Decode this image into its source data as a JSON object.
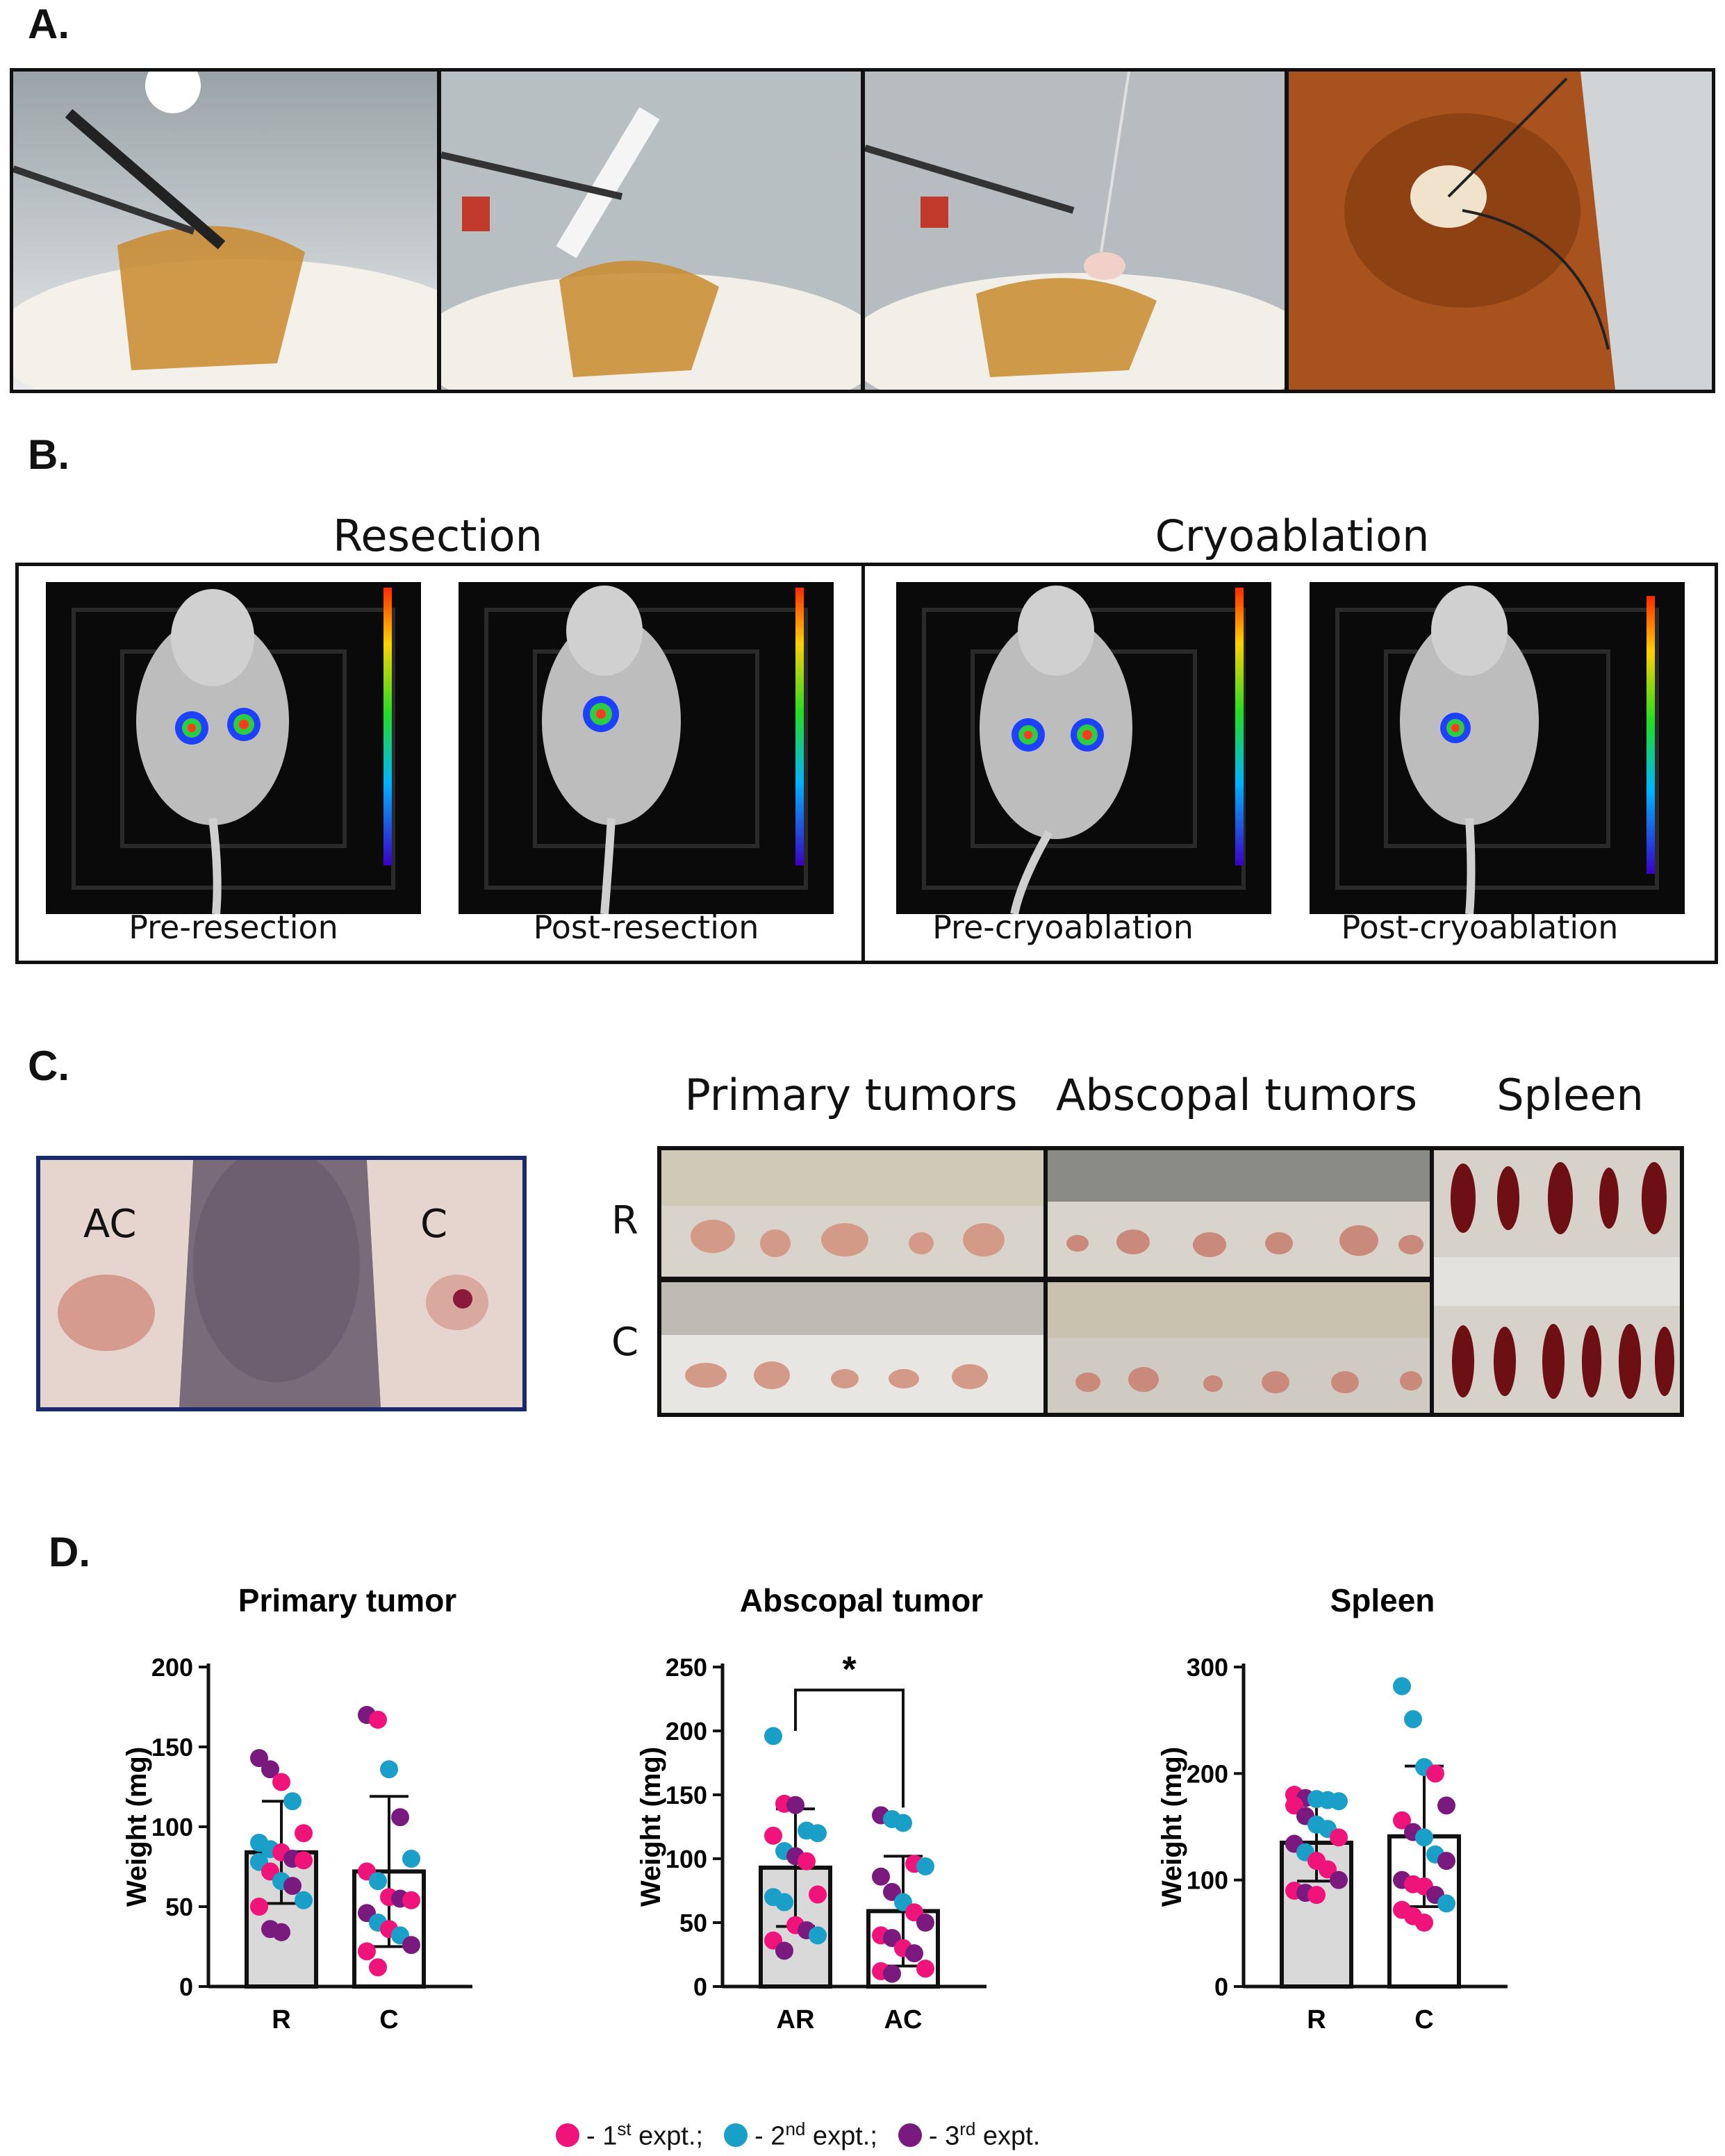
{
  "panels": {
    "a": "A.",
    "b": "B.",
    "c": "C.",
    "d": "D."
  },
  "panel_b": {
    "groups": [
      "Resection",
      "Cryoablation"
    ],
    "captions": [
      "Pre-resection",
      "Post-resection",
      "Pre-cryoablation",
      "Post-cryoablation"
    ]
  },
  "panel_c": {
    "mouse_labels": [
      "AC",
      "C"
    ],
    "headers": [
      "Primary tumors",
      "Abscopal tumors",
      "Spleen"
    ],
    "rows": [
      "R",
      "C"
    ]
  },
  "colors": {
    "first": "#f0147a",
    "second": "#1aa0c8",
    "third": "#7a1a7e",
    "bar": "#d9d9d9"
  },
  "legend": {
    "first": "- 1",
    "first_sup": "st",
    "first_tail": " expt.;",
    "second": "- 2",
    "second_sup": "nd",
    "second_tail": " expt.;",
    "third": "- 3",
    "third_sup": "rd",
    "third_tail": " expt."
  },
  "chart_data": [
    {
      "type": "bar",
      "title": "Primary tumor",
      "ylabel": "Weight (mg)",
      "categories": [
        "R",
        "C"
      ],
      "ylim": [
        0,
        200
      ],
      "yticks": [
        0,
        50,
        100,
        150,
        200
      ],
      "values": [
        84,
        72
      ],
      "sd": [
        32,
        47
      ],
      "points": [
        [
          {
            "y": 143,
            "g": 3
          },
          {
            "y": 136,
            "g": 3
          },
          {
            "y": 128,
            "g": 1
          },
          {
            "y": 116,
            "g": 2
          },
          {
            "y": 96,
            "g": 1
          },
          {
            "y": 90,
            "g": 2
          },
          {
            "y": 86,
            "g": 2
          },
          {
            "y": 84,
            "g": 1
          },
          {
            "y": 80,
            "g": 3
          },
          {
            "y": 79,
            "g": 1
          },
          {
            "y": 78,
            "g": 2
          },
          {
            "y": 72,
            "g": 1
          },
          {
            "y": 66,
            "g": 2
          },
          {
            "y": 63,
            "g": 3
          },
          {
            "y": 54,
            "g": 2
          },
          {
            "y": 50,
            "g": 1
          },
          {
            "y": 36,
            "g": 3
          },
          {
            "y": 34,
            "g": 3
          }
        ],
        [
          {
            "y": 170,
            "g": 3
          },
          {
            "y": 167,
            "g": 1
          },
          {
            "y": 136,
            "g": 2
          },
          {
            "y": 106,
            "g": 3
          },
          {
            "y": 80,
            "g": 2
          },
          {
            "y": 72,
            "g": 1
          },
          {
            "y": 66,
            "g": 2
          },
          {
            "y": 56,
            "g": 1
          },
          {
            "y": 55,
            "g": 3
          },
          {
            "y": 54,
            "g": 1
          },
          {
            "y": 46,
            "g": 3
          },
          {
            "y": 40,
            "g": 2
          },
          {
            "y": 36,
            "g": 1
          },
          {
            "y": 32,
            "g": 2
          },
          {
            "y": 26,
            "g": 3
          },
          {
            "y": 22,
            "g": 1
          },
          {
            "y": 12,
            "g": 1
          }
        ]
      ]
    },
    {
      "type": "bar",
      "title": "Abscopal tumor",
      "ylabel": "Weight (mg)",
      "categories": [
        "AR",
        "AC"
      ],
      "ylim": [
        0,
        250
      ],
      "yticks": [
        0,
        50,
        100,
        150,
        200,
        250
      ],
      "values": [
        93,
        59
      ],
      "sd": [
        46,
        43
      ],
      "annotation": "*",
      "points": [
        [
          {
            "y": 196,
            "g": 2
          },
          {
            "y": 143,
            "g": 1
          },
          {
            "y": 142,
            "g": 3
          },
          {
            "y": 122,
            "g": 2
          },
          {
            "y": 120,
            "g": 2
          },
          {
            "y": 118,
            "g": 1
          },
          {
            "y": 106,
            "g": 2
          },
          {
            "y": 102,
            "g": 3
          },
          {
            "y": 98,
            "g": 1
          },
          {
            "y": 72,
            "g": 1
          },
          {
            "y": 70,
            "g": 2
          },
          {
            "y": 66,
            "g": 2
          },
          {
            "y": 48,
            "g": 1
          },
          {
            "y": 44,
            "g": 3
          },
          {
            "y": 40,
            "g": 2
          },
          {
            "y": 36,
            "g": 1
          },
          {
            "y": 28,
            "g": 3
          }
        ],
        [
          {
            "y": 134,
            "g": 3
          },
          {
            "y": 131,
            "g": 2
          },
          {
            "y": 128,
            "g": 2
          },
          {
            "y": 96,
            "g": 1
          },
          {
            "y": 94,
            "g": 2
          },
          {
            "y": 86,
            "g": 3
          },
          {
            "y": 74,
            "g": 3
          },
          {
            "y": 66,
            "g": 2
          },
          {
            "y": 58,
            "g": 1
          },
          {
            "y": 50,
            "g": 3
          },
          {
            "y": 40,
            "g": 1
          },
          {
            "y": 38,
            "g": 3
          },
          {
            "y": 30,
            "g": 1
          },
          {
            "y": 26,
            "g": 3
          },
          {
            "y": 14,
            "g": 1
          },
          {
            "y": 12,
            "g": 1
          },
          {
            "y": 10,
            "g": 3
          }
        ]
      ]
    },
    {
      "type": "bar",
      "title": "Spleen",
      "ylabel": "Weight (mg)",
      "categories": [
        "R",
        "C"
      ],
      "ylim": [
        0,
        300
      ],
      "yticks": [
        0,
        100,
        200,
        300
      ],
      "values": [
        135,
        141
      ],
      "sd": [
        36,
        66
      ],
      "points": [
        [
          {
            "y": 180,
            "g": 1
          },
          {
            "y": 177,
            "g": 3
          },
          {
            "y": 176,
            "g": 2
          },
          {
            "y": 175,
            "g": 2
          },
          {
            "y": 174,
            "g": 2
          },
          {
            "y": 170,
            "g": 1
          },
          {
            "y": 160,
            "g": 3
          },
          {
            "y": 152,
            "g": 2
          },
          {
            "y": 148,
            "g": 2
          },
          {
            "y": 140,
            "g": 1
          },
          {
            "y": 134,
            "g": 3
          },
          {
            "y": 126,
            "g": 2
          },
          {
            "y": 118,
            "g": 1
          },
          {
            "y": 110,
            "g": 1
          },
          {
            "y": 100,
            "g": 3
          },
          {
            "y": 90,
            "g": 1
          },
          {
            "y": 88,
            "g": 3
          },
          {
            "y": 86,
            "g": 1
          }
        ],
        [
          {
            "y": 282,
            "g": 2
          },
          {
            "y": 251,
            "g": 2
          },
          {
            "y": 206,
            "g": 2
          },
          {
            "y": 200,
            "g": 1
          },
          {
            "y": 170,
            "g": 3
          },
          {
            "y": 156,
            "g": 1
          },
          {
            "y": 145,
            "g": 3
          },
          {
            "y": 140,
            "g": 2
          },
          {
            "y": 124,
            "g": 2
          },
          {
            "y": 118,
            "g": 3
          },
          {
            "y": 100,
            "g": 3
          },
          {
            "y": 96,
            "g": 1
          },
          {
            "y": 94,
            "g": 1
          },
          {
            "y": 86,
            "g": 3
          },
          {
            "y": 78,
            "g": 2
          },
          {
            "y": 72,
            "g": 1
          },
          {
            "y": 66,
            "g": 1
          },
          {
            "y": 60,
            "g": 1
          }
        ]
      ]
    }
  ]
}
